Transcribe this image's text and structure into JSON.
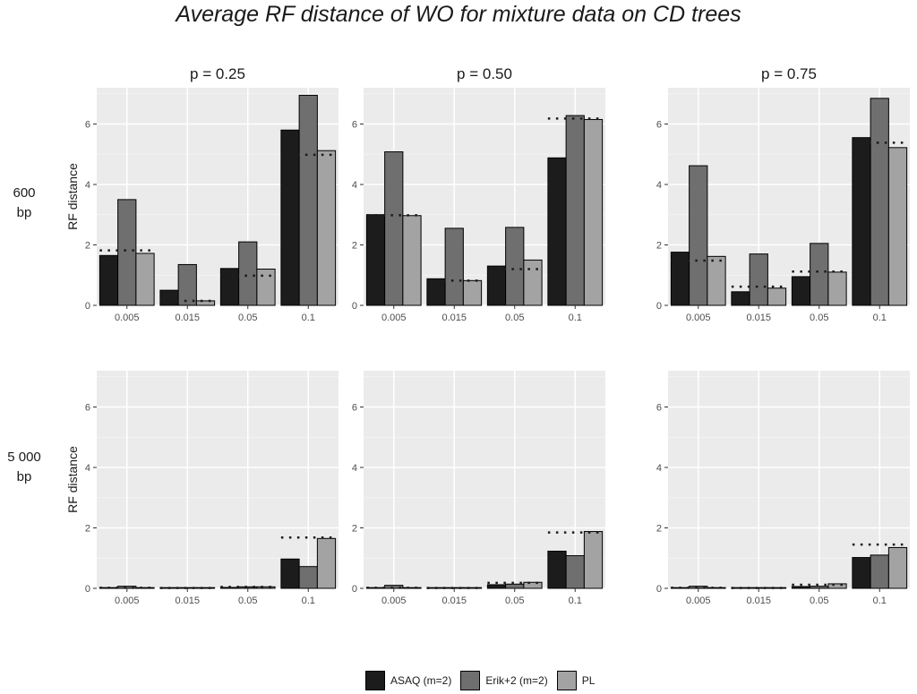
{
  "title": "Average RF distance of WO for mixture data on CD trees",
  "legend": {
    "items": [
      {
        "label": "ASAQ (m=2)",
        "color": "#1c1c1c"
      },
      {
        "label": "Erik+2 (m=2)",
        "color": "#6f6f6f"
      },
      {
        "label": "PL",
        "color": "#a3a3a3"
      }
    ]
  },
  "row_labels": [
    {
      "line1": "600",
      "line2": "bp"
    },
    {
      "line1": "5 000",
      "line2": "bp"
    }
  ],
  "chart_data": {
    "type": "bar",
    "title": "Average RF distance of WO for mixture data on CD trees",
    "ylabel": "RF distance",
    "xlabel": "",
    "ylim": [
      0,
      7.2
    ],
    "yticks": [
      0,
      2,
      4,
      6
    ],
    "categories": [
      "0.005",
      "0.015",
      "0.05",
      "0.1"
    ],
    "series_names": [
      "ASAQ (m=2)",
      "Erik+2 (m=2)",
      "PL"
    ],
    "columns": [
      "p = 0.25",
      "p = 0.50",
      "p = 0.75"
    ],
    "rows": [
      "600 bp",
      "5 000 bp"
    ],
    "facets": [
      {
        "row": 0,
        "col": 0,
        "column_label": "p = 0.25",
        "series": [
          {
            "name": "ASAQ (m=2)",
            "values": [
              1.65,
              0.5,
              1.22,
              5.8
            ]
          },
          {
            "name": "Erik+2 (m=2)",
            "values": [
              3.5,
              1.35,
              2.1,
              6.95
            ]
          },
          {
            "name": "PL",
            "values": [
              1.72,
              0.15,
              1.2,
              5.12
            ]
          }
        ],
        "reference_lines": [
          1.82,
          0.15,
          0.98,
          4.98
        ]
      },
      {
        "row": 0,
        "col": 1,
        "column_label": "p = 0.50",
        "series": [
          {
            "name": "ASAQ (m=2)",
            "values": [
              3.0,
              0.88,
              1.3,
              4.88
            ]
          },
          {
            "name": "Erik+2 (m=2)",
            "values": [
              5.08,
              2.55,
              2.58,
              6.28
            ]
          },
          {
            "name": "PL",
            "values": [
              2.97,
              0.82,
              1.5,
              6.15
            ]
          }
        ],
        "reference_lines": [
          2.98,
          0.82,
          1.2,
          6.18
        ]
      },
      {
        "row": 0,
        "col": 2,
        "column_label": "p = 0.75",
        "series": [
          {
            "name": "ASAQ (m=2)",
            "values": [
              1.76,
              0.45,
              0.95,
              5.55
            ]
          },
          {
            "name": "Erik+2 (m=2)",
            "values": [
              4.62,
              1.7,
              2.05,
              6.85
            ]
          },
          {
            "name": "PL",
            "values": [
              1.62,
              0.57,
              1.1,
              5.22
            ]
          }
        ],
        "reference_lines": [
          1.48,
          0.62,
          1.12,
          5.38
        ]
      },
      {
        "row": 1,
        "col": 0,
        "column_label": "p = 0.25",
        "series": [
          {
            "name": "ASAQ (m=2)",
            "values": [
              0.02,
              0.01,
              0.03,
              0.97
            ]
          },
          {
            "name": "Erik+2 (m=2)",
            "values": [
              0.07,
              0.02,
              0.05,
              0.72
            ]
          },
          {
            "name": "PL",
            "values": [
              0.02,
              0.01,
              0.05,
              1.65
            ]
          }
        ],
        "reference_lines": [
          0.02,
          0.01,
          0.05,
          1.68
        ]
      },
      {
        "row": 1,
        "col": 1,
        "column_label": "p = 0.50",
        "series": [
          {
            "name": "ASAQ (m=2)",
            "values": [
              0.02,
              0.01,
              0.12,
              1.23
            ]
          },
          {
            "name": "Erik+2 (m=2)",
            "values": [
              0.1,
              0.01,
              0.14,
              1.08
            ]
          },
          {
            "name": "PL",
            "values": [
              0.02,
              0.01,
              0.2,
              1.88
            ]
          }
        ],
        "reference_lines": [
          0.02,
          0.01,
          0.18,
          1.85
        ]
      },
      {
        "row": 1,
        "col": 2,
        "column_label": "p = 0.75",
        "series": [
          {
            "name": "ASAQ (m=2)",
            "values": [
              0.02,
              0.01,
              0.06,
              1.02
            ]
          },
          {
            "name": "Erik+2 (m=2)",
            "values": [
              0.07,
              0.01,
              0.07,
              1.1
            ]
          },
          {
            "name": "PL",
            "values": [
              0.02,
              0.01,
              0.15,
              1.35
            ]
          }
        ],
        "reference_lines": [
          0.02,
          0.01,
          0.12,
          1.45
        ]
      }
    ]
  }
}
